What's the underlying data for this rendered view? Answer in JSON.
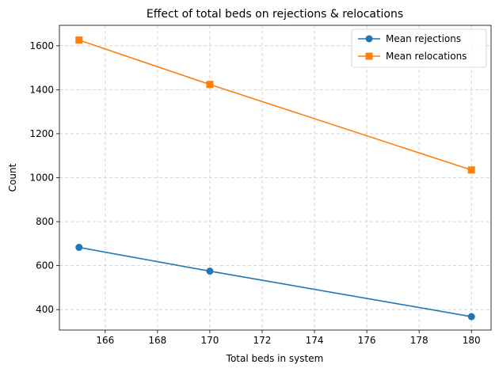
{
  "chart_data": {
    "type": "line",
    "title": "Effect of total beds on rejections & relocations",
    "xlabel": "Total beds in system",
    "ylabel": "Count",
    "x": [
      165,
      170,
      180
    ],
    "xlim": [
      164.25,
      180.75
    ],
    "ylim": [
      307,
      1693
    ],
    "xticks": [
      166,
      168,
      170,
      172,
      174,
      176,
      178,
      180
    ],
    "yticks": [
      400,
      600,
      800,
      1000,
      1200,
      1400,
      1600
    ],
    "grid": true,
    "legend_position": "top-right",
    "series": [
      {
        "name": "Mean rejections",
        "values": [
          683,
          575,
          368
        ],
        "color": "#1f77b4",
        "marker": "circle"
      },
      {
        "name": "Mean relocations",
        "values": [
          1626,
          1424,
          1035
        ],
        "color": "#ff7f0e",
        "marker": "square"
      }
    ]
  }
}
